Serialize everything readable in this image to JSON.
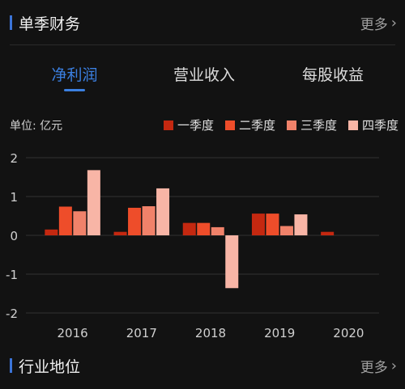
{
  "section1": {
    "title": "单季财务",
    "more": "更多"
  },
  "tabs": [
    {
      "label": "净利润",
      "active": true
    },
    {
      "label": "营业收入",
      "active": false
    },
    {
      "label": "每股收益",
      "active": false
    }
  ],
  "chart_data": {
    "type": "bar",
    "unit_label": "单位: 亿元",
    "categories": [
      "2016",
      "2017",
      "2018",
      "2019",
      "2020"
    ],
    "series": [
      {
        "name": "一季度",
        "color": "#c42810",
        "values": [
          0.15,
          0.09,
          0.32,
          0.56,
          0.09
        ]
      },
      {
        "name": "二季度",
        "color": "#ee4d2a",
        "values": [
          0.74,
          0.71,
          0.32,
          0.56,
          null
        ]
      },
      {
        "name": "三季度",
        "color": "#f0826a",
        "values": [
          0.62,
          0.75,
          0.21,
          0.24,
          null
        ]
      },
      {
        "name": "四季度",
        "color": "#f8b5a6",
        "values": [
          1.68,
          1.21,
          -1.36,
          0.54,
          null
        ]
      }
    ],
    "yticks": [
      2,
      1,
      0,
      -1,
      -2
    ],
    "ylim": [
      -2,
      2
    ],
    "legend_position": "top-right",
    "grid": true
  },
  "section2": {
    "title": "行业地位",
    "more": "更多"
  }
}
